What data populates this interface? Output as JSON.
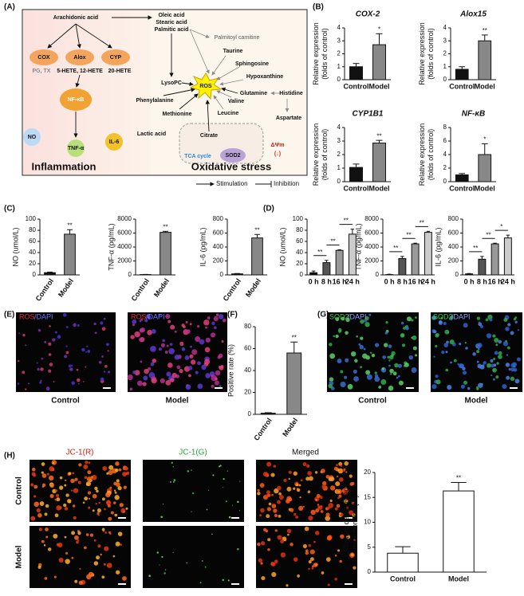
{
  "panel_labels": [
    "(A)",
    "(B)",
    "(C)",
    "(D)",
    "(E)",
    "(F)",
    "(G)",
    "(H)"
  ],
  "diagram": {
    "nodes": [
      "Arachidonic acid",
      "Oleic acid",
      "Stearic acid",
      "Palmitic acid",
      "Palmitoyl carnitine",
      "COX",
      "Alox",
      "CYP",
      "PG, TX",
      "5-HETE, 12-HETE",
      "20-HETE",
      "Taurine",
      "Sphingosine",
      "LysoPC",
      "ROS",
      "Hypoxanthine",
      "NF-κB",
      "Phenylalanine",
      "Glutamine",
      "Histidine",
      "Methionine",
      "Valine",
      "Leucine",
      "Aspartate",
      "Lactic acid",
      "Citrate",
      "NO",
      "TNF-α",
      "IL-6",
      "TCA cycle",
      "SOD2",
      "ΔΨm",
      "(↓)"
    ],
    "sections": [
      "Inflammation",
      "Oxidative stress"
    ],
    "legend": [
      "Stimulation",
      "Inhibition"
    ]
  },
  "images": {
    "e_label": [
      "ROS",
      "/DAPI"
    ],
    "e_captions": [
      "Control",
      "Model"
    ],
    "g_label": [
      "SOD2",
      "/DAPI"
    ],
    "g_captions": [
      "Control",
      "Model"
    ],
    "h_columns": [
      "JC-1(R)",
      "JC-1(G)",
      "Merged"
    ],
    "h_rows": [
      "Control",
      "Model"
    ]
  },
  "chart_data": [
    {
      "type": "bar",
      "title": "COX-2",
      "ylabel": [
        "Relative expression",
        "(folds of control)"
      ],
      "categories": [
        "Control",
        "Model"
      ],
      "values": [
        1.0,
        2.7
      ],
      "errors": [
        0.25,
        0.85
      ],
      "colors": [
        "#111111",
        "#888888"
      ],
      "annotations": [
        null,
        "*"
      ],
      "ylim": [
        0,
        4
      ],
      "yticks": [
        0,
        1,
        2,
        3,
        4
      ]
    },
    {
      "type": "bar",
      "title": "Alox15",
      "ylabel": [
        "Relative expression",
        "(folds of control)"
      ],
      "categories": [
        "Control",
        "Model"
      ],
      "values": [
        0.8,
        3.0
      ],
      "errors": [
        0.2,
        0.45
      ],
      "colors": [
        "#111111",
        "#888888"
      ],
      "annotations": [
        null,
        "**"
      ],
      "ylim": [
        0,
        4
      ],
      "yticks": [
        0,
        1,
        2,
        3,
        4
      ]
    },
    {
      "type": "bar",
      "title": "CYP1B1",
      "ylabel": [
        "Relative expression",
        "(folds of control)"
      ],
      "categories": [
        "Control",
        "Model"
      ],
      "values": [
        1.05,
        2.85
      ],
      "errors": [
        0.25,
        0.2
      ],
      "colors": [
        "#111111",
        "#888888"
      ],
      "annotations": [
        null,
        "**"
      ],
      "ylim": [
        0,
        4
      ],
      "yticks": [
        0,
        1,
        2,
        3,
        4
      ]
    },
    {
      "type": "bar",
      "title": "NF-κB",
      "ylabel": [
        "Relative expression",
        "(folds of control)"
      ],
      "categories": [
        "Control",
        "Model"
      ],
      "values": [
        1.0,
        4.0
      ],
      "errors": [
        0.2,
        1.6
      ],
      "colors": [
        "#111111",
        "#888888"
      ],
      "annotations": [
        null,
        "*"
      ],
      "ylim": [
        0,
        8
      ],
      "yticks": [
        0,
        2,
        4,
        6,
        8
      ]
    },
    {
      "type": "bar",
      "ylabel": [
        "NO (umol/L)"
      ],
      "categories": [
        "Control",
        "Model"
      ],
      "values": [
        4,
        73
      ],
      "errors": [
        1,
        8
      ],
      "colors": [
        "#111111",
        "#888888"
      ],
      "annotations": [
        null,
        "**"
      ],
      "ylim": [
        0,
        100
      ],
      "yticks": [
        0,
        20,
        40,
        60,
        80,
        100
      ]
    },
    {
      "type": "bar",
      "ylabel": [
        "TNF-α (pg/mL)"
      ],
      "categories": [
        "Control",
        "Model"
      ],
      "values": [
        50,
        6100
      ],
      "errors": [
        20,
        150
      ],
      "colors": [
        "#111111",
        "#888888"
      ],
      "annotations": [
        null,
        "**"
      ],
      "ylim": [
        0,
        8000
      ],
      "yticks": [
        0,
        2000,
        4000,
        6000,
        8000
      ]
    },
    {
      "type": "bar",
      "ylabel": [
        "IL-6 (pg/mL)"
      ],
      "categories": [
        "Control",
        "Model"
      ],
      "values": [
        15,
        530
      ],
      "errors": [
        5,
        50
      ],
      "colors": [
        "#111111",
        "#888888"
      ],
      "annotations": [
        null,
        "**"
      ],
      "ylim": [
        0,
        800
      ],
      "yticks": [
        0,
        200,
        400,
        600,
        800
      ]
    },
    {
      "type": "bar",
      "ylabel": [
        "NO (umol/L)"
      ],
      "categories": [
        "0 h",
        "8 h",
        "16 h",
        "24 h"
      ],
      "values": [
        4,
        22,
        44,
        73
      ],
      "errors": [
        3,
        4,
        1,
        9
      ],
      "colors": [
        "#111111",
        "#555555",
        "#999999",
        "#cccccc"
      ],
      "bracket_labels": [
        "**",
        "**",
        "**"
      ],
      "ylim": [
        0,
        100
      ],
      "yticks": [
        0,
        20,
        40,
        60,
        80,
        100
      ]
    },
    {
      "type": "bar",
      "ylabel": [
        "TNF-α (pg/mL)"
      ],
      "categories": [
        "0 h",
        "8 h",
        "16 h",
        "24 h"
      ],
      "values": [
        50,
        2350,
        4450,
        6100
      ],
      "errors": [
        50,
        300,
        100,
        150
      ],
      "colors": [
        "#111111",
        "#555555",
        "#999999",
        "#cccccc"
      ],
      "bracket_labels": [
        "**",
        "**",
        "**"
      ],
      "ylim": [
        0,
        8000
      ],
      "yticks": [
        0,
        2000,
        4000,
        6000,
        8000
      ]
    },
    {
      "type": "bar",
      "ylabel": [
        "IL-6 (pg/mL)"
      ],
      "categories": [
        "0 h",
        "8 h",
        "16 h",
        "24 h"
      ],
      "values": [
        15,
        225,
        445,
        530
      ],
      "errors": [
        5,
        40,
        10,
        40
      ],
      "colors": [
        "#111111",
        "#555555",
        "#999999",
        "#cccccc"
      ],
      "bracket_labels": [
        "**",
        "**",
        "*"
      ],
      "ylim": [
        0,
        800
      ],
      "yticks": [
        0,
        200,
        400,
        600,
        800
      ]
    },
    {
      "type": "bar",
      "ylabel": [
        "Positive rate (%)"
      ],
      "categories": [
        "Control",
        "Model"
      ],
      "values": [
        1,
        56
      ],
      "errors": [
        0.5,
        10
      ],
      "colors": [
        "#111111",
        "#888888"
      ],
      "annotations": [
        null,
        "**"
      ],
      "ylim": [
        0,
        80
      ],
      "yticks": [
        0,
        20,
        40,
        60,
        80
      ]
    },
    {
      "type": "bar",
      "ylabel": [
        "Cells with depolarised",
        "mitochondria (%)"
      ],
      "categories": [
        "Control",
        "Model"
      ],
      "values": [
        3.8,
        16.3
      ],
      "errors": [
        1.3,
        1.7
      ],
      "colors": [
        "#ffffff",
        "#ffffff"
      ],
      "annotations": [
        null,
        "**"
      ],
      "ylim": [
        0,
        20
      ],
      "yticks": [
        0,
        5,
        10,
        15,
        20
      ]
    }
  ]
}
